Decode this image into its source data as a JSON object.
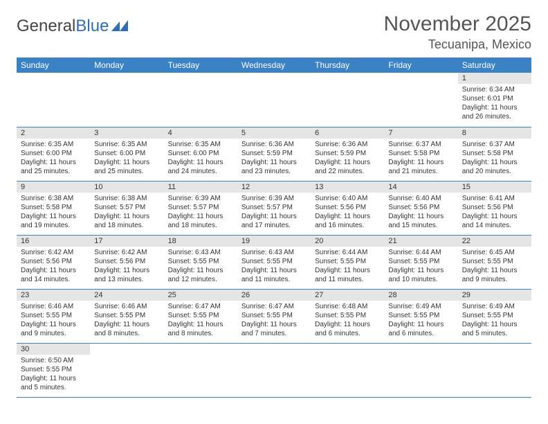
{
  "logo": {
    "text1": "General",
    "text2": "Blue"
  },
  "title": "November 2025",
  "location": "Tecuanipa, Mexico",
  "colors": {
    "header_bg": "#3b82c4",
    "header_text": "#ffffff",
    "daynum_bg": "#e5e5e5",
    "border": "#3b82c4",
    "logo_blue": "#2d6eb5",
    "text": "#333333"
  },
  "day_headers": [
    "Sunday",
    "Monday",
    "Tuesday",
    "Wednesday",
    "Thursday",
    "Friday",
    "Saturday"
  ],
  "weeks": [
    [
      null,
      null,
      null,
      null,
      null,
      null,
      {
        "n": "1",
        "sr": "6:34 AM",
        "ss": "6:01 PM",
        "dl": "11 hours and 26 minutes."
      }
    ],
    [
      {
        "n": "2",
        "sr": "6:35 AM",
        "ss": "6:00 PM",
        "dl": "11 hours and 25 minutes."
      },
      {
        "n": "3",
        "sr": "6:35 AM",
        "ss": "6:00 PM",
        "dl": "11 hours and 25 minutes."
      },
      {
        "n": "4",
        "sr": "6:35 AM",
        "ss": "6:00 PM",
        "dl": "11 hours and 24 minutes."
      },
      {
        "n": "5",
        "sr": "6:36 AM",
        "ss": "5:59 PM",
        "dl": "11 hours and 23 minutes."
      },
      {
        "n": "6",
        "sr": "6:36 AM",
        "ss": "5:59 PM",
        "dl": "11 hours and 22 minutes."
      },
      {
        "n": "7",
        "sr": "6:37 AM",
        "ss": "5:58 PM",
        "dl": "11 hours and 21 minutes."
      },
      {
        "n": "8",
        "sr": "6:37 AM",
        "ss": "5:58 PM",
        "dl": "11 hours and 20 minutes."
      }
    ],
    [
      {
        "n": "9",
        "sr": "6:38 AM",
        "ss": "5:58 PM",
        "dl": "11 hours and 19 minutes."
      },
      {
        "n": "10",
        "sr": "6:38 AM",
        "ss": "5:57 PM",
        "dl": "11 hours and 18 minutes."
      },
      {
        "n": "11",
        "sr": "6:39 AM",
        "ss": "5:57 PM",
        "dl": "11 hours and 18 minutes."
      },
      {
        "n": "12",
        "sr": "6:39 AM",
        "ss": "5:57 PM",
        "dl": "11 hours and 17 minutes."
      },
      {
        "n": "13",
        "sr": "6:40 AM",
        "ss": "5:56 PM",
        "dl": "11 hours and 16 minutes."
      },
      {
        "n": "14",
        "sr": "6:40 AM",
        "ss": "5:56 PM",
        "dl": "11 hours and 15 minutes."
      },
      {
        "n": "15",
        "sr": "6:41 AM",
        "ss": "5:56 PM",
        "dl": "11 hours and 14 minutes."
      }
    ],
    [
      {
        "n": "16",
        "sr": "6:42 AM",
        "ss": "5:56 PM",
        "dl": "11 hours and 14 minutes."
      },
      {
        "n": "17",
        "sr": "6:42 AM",
        "ss": "5:56 PM",
        "dl": "11 hours and 13 minutes."
      },
      {
        "n": "18",
        "sr": "6:43 AM",
        "ss": "5:55 PM",
        "dl": "11 hours and 12 minutes."
      },
      {
        "n": "19",
        "sr": "6:43 AM",
        "ss": "5:55 PM",
        "dl": "11 hours and 11 minutes."
      },
      {
        "n": "20",
        "sr": "6:44 AM",
        "ss": "5:55 PM",
        "dl": "11 hours and 11 minutes."
      },
      {
        "n": "21",
        "sr": "6:44 AM",
        "ss": "5:55 PM",
        "dl": "11 hours and 10 minutes."
      },
      {
        "n": "22",
        "sr": "6:45 AM",
        "ss": "5:55 PM",
        "dl": "11 hours and 9 minutes."
      }
    ],
    [
      {
        "n": "23",
        "sr": "6:46 AM",
        "ss": "5:55 PM",
        "dl": "11 hours and 9 minutes."
      },
      {
        "n": "24",
        "sr": "6:46 AM",
        "ss": "5:55 PM",
        "dl": "11 hours and 8 minutes."
      },
      {
        "n": "25",
        "sr": "6:47 AM",
        "ss": "5:55 PM",
        "dl": "11 hours and 8 minutes."
      },
      {
        "n": "26",
        "sr": "6:47 AM",
        "ss": "5:55 PM",
        "dl": "11 hours and 7 minutes."
      },
      {
        "n": "27",
        "sr": "6:48 AM",
        "ss": "5:55 PM",
        "dl": "11 hours and 6 minutes."
      },
      {
        "n": "28",
        "sr": "6:49 AM",
        "ss": "5:55 PM",
        "dl": "11 hours and 6 minutes."
      },
      {
        "n": "29",
        "sr": "6:49 AM",
        "ss": "5:55 PM",
        "dl": "11 hours and 5 minutes."
      }
    ],
    [
      {
        "n": "30",
        "sr": "6:50 AM",
        "ss": "5:55 PM",
        "dl": "11 hours and 5 minutes."
      },
      null,
      null,
      null,
      null,
      null,
      null
    ]
  ],
  "labels": {
    "sunrise": "Sunrise:",
    "sunset": "Sunset:",
    "daylight": "Daylight:"
  }
}
